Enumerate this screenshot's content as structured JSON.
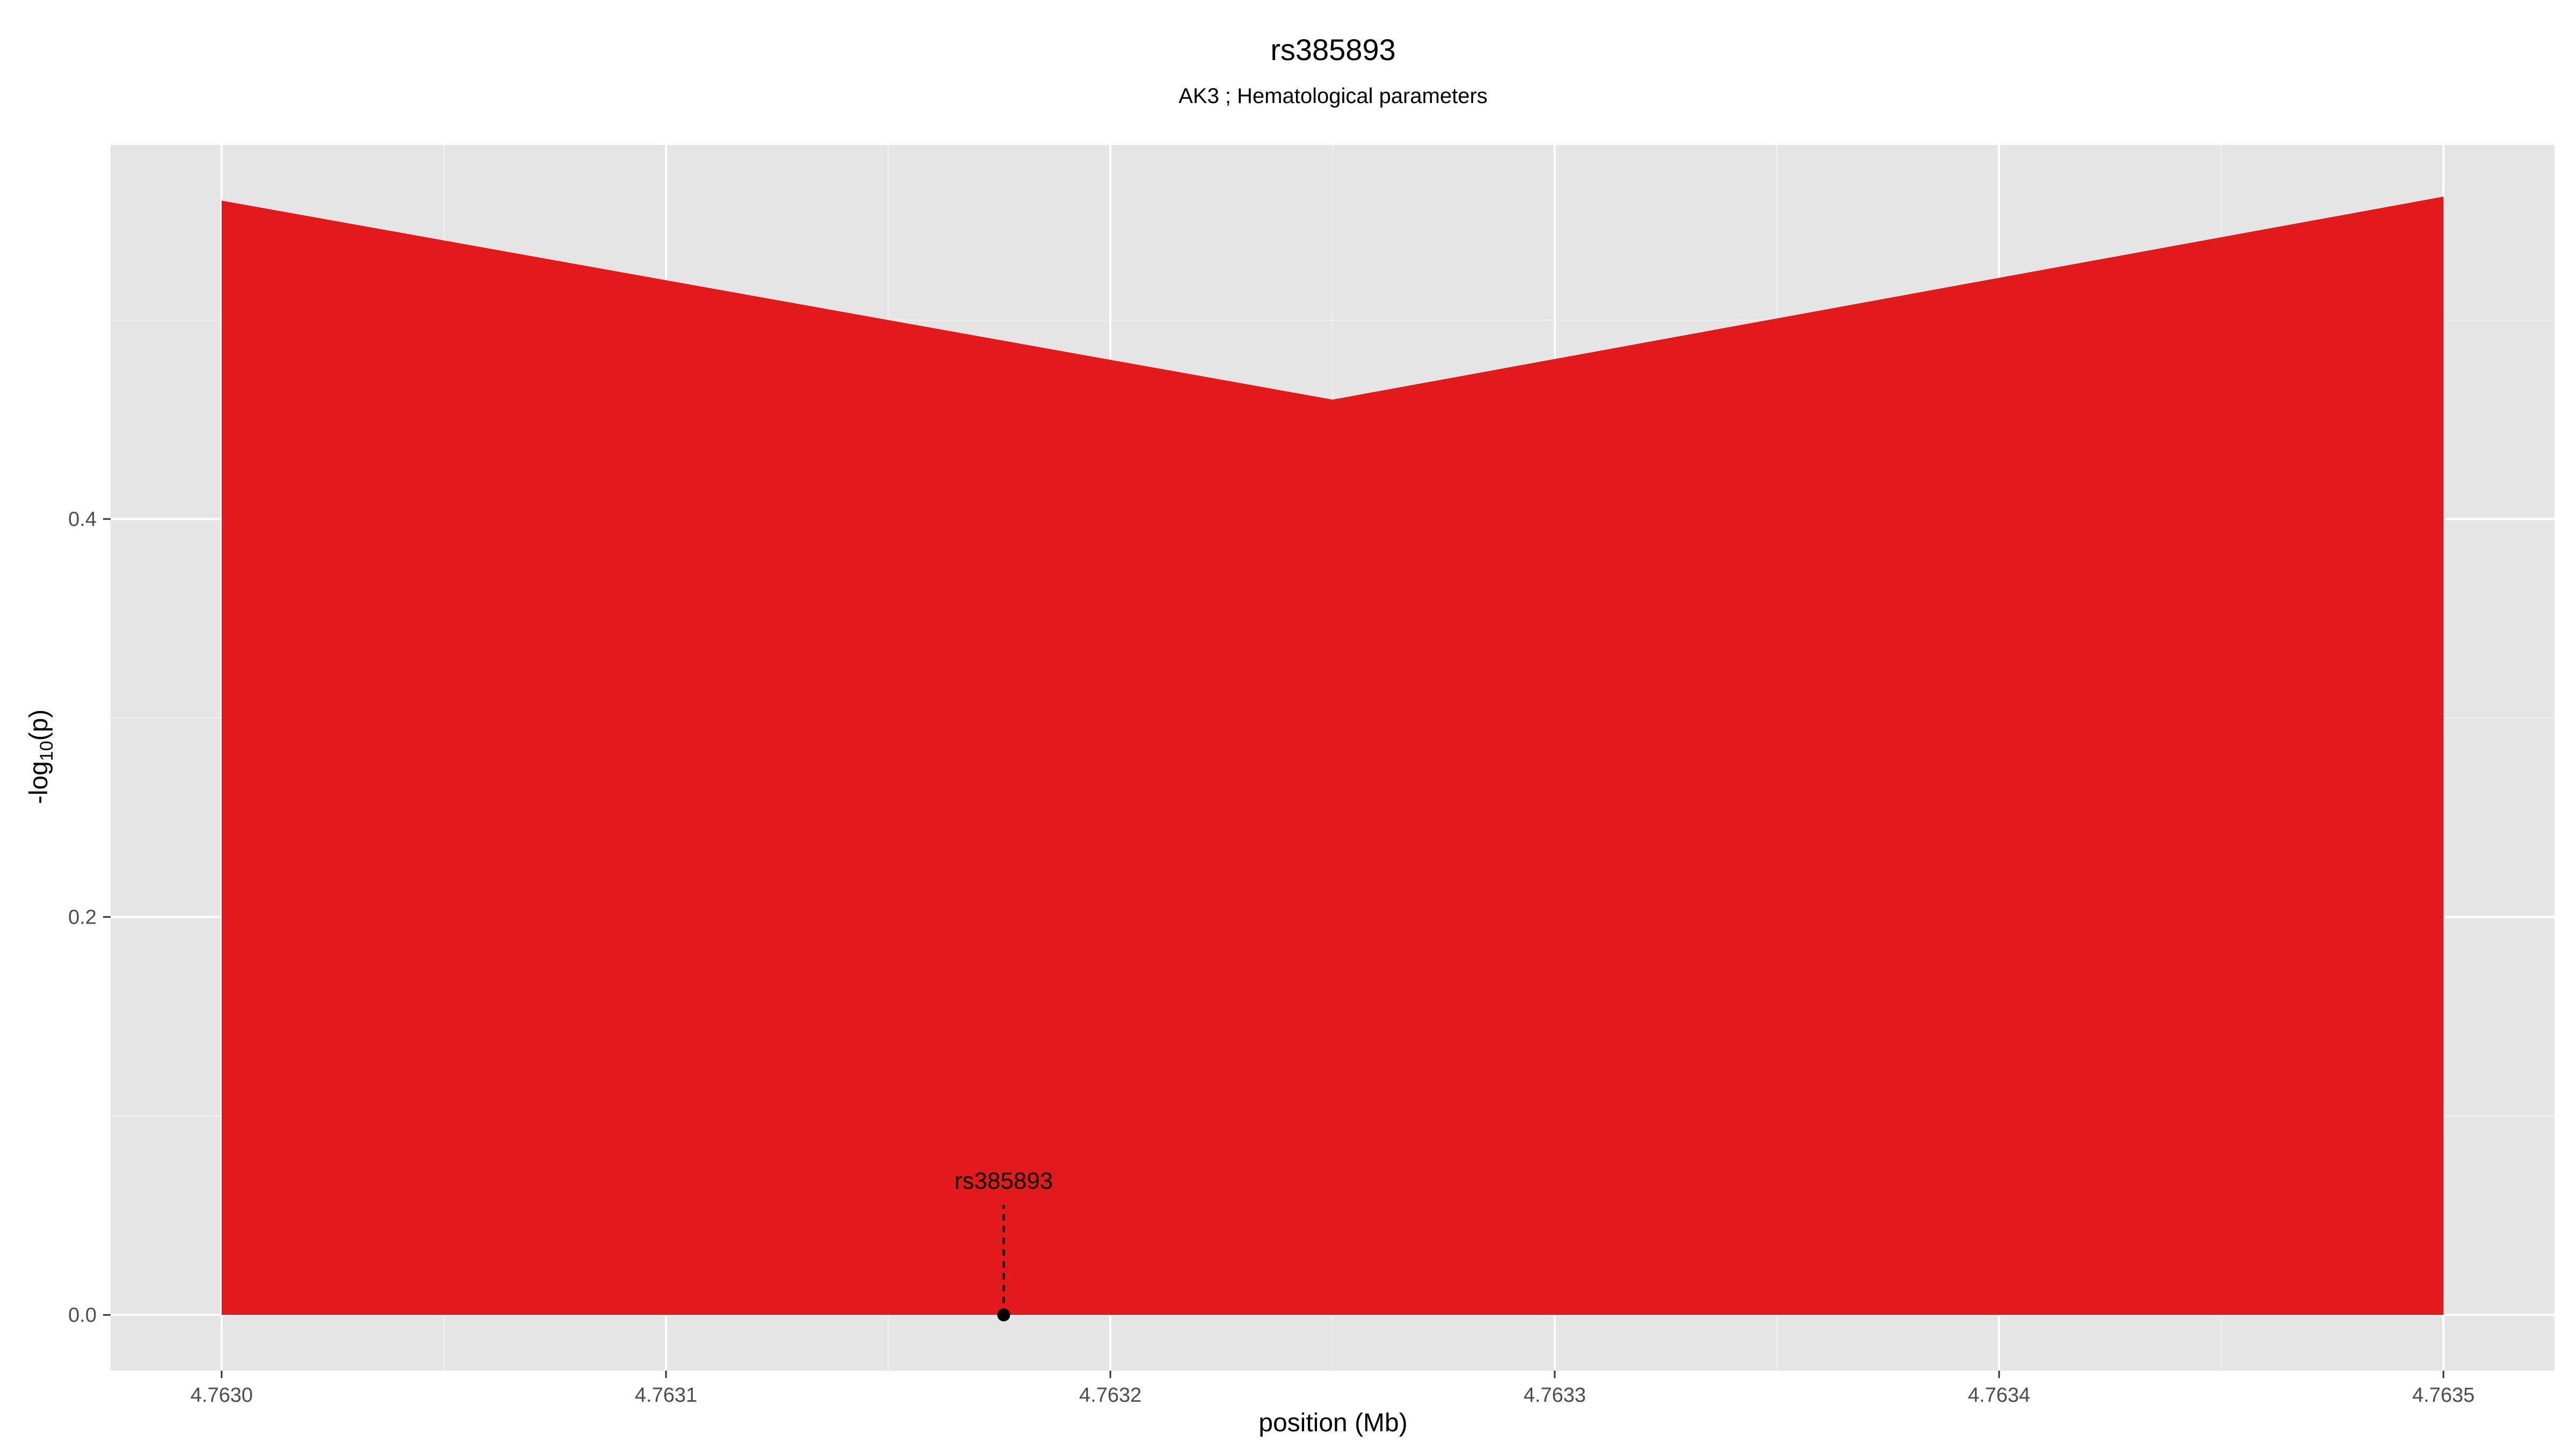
{
  "chart_data": {
    "type": "area",
    "title": "rs385893",
    "subtitle": "AK3 ; Hematological parameters",
    "xlabel": "position (Mb)",
    "ylabel_prefix": "-log",
    "ylabel_sub": "10",
    "ylabel_suffix": "(p)",
    "xlim": [
      4.762975,
      4.763525
    ],
    "ylim": [
      -0.028,
      0.588
    ],
    "x_ticks": [
      4.763,
      4.7631,
      4.7632,
      4.7633,
      4.7634,
      4.7635
    ],
    "x_tick_labels": [
      "4.7630",
      "4.7631",
      "4.7632",
      "4.7633",
      "4.7634",
      "4.7635"
    ],
    "y_ticks": [
      0.0,
      0.2,
      0.4
    ],
    "y_tick_labels": [
      "0.0",
      "0.2",
      "0.4"
    ],
    "grid": true,
    "series": [
      {
        "x": [
          4.763,
          4.76325,
          4.7635
        ],
        "y": [
          0.56,
          0.46,
          0.562
        ],
        "color": "#e31a1c"
      }
    ],
    "snp": {
      "label": "rs385893",
      "x": 4.763176,
      "y": 0.0,
      "color": "#000000"
    },
    "panel_background": "#e5e5e5",
    "grid_color": "#ffffff",
    "axis_text_color": "#4d4d4d"
  }
}
